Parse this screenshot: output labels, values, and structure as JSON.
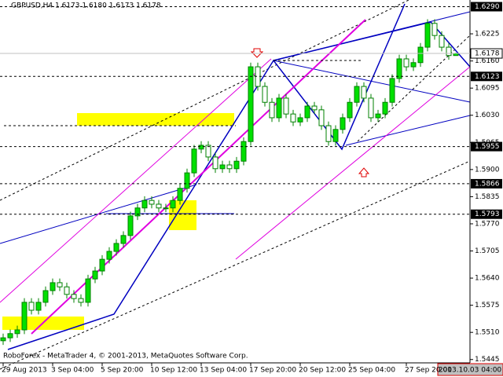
{
  "chart_data": {
    "type": "candlestick",
    "title": "GBPUSD,H4  1.6173 1.6180 1.6173 1.6178",
    "footer": "RoboForex - MetaTrader 4, © 2001-2013, MetaQuotes Software Corp.",
    "cursor_label": "2013.10.03 04:00",
    "up_color": "#00e000",
    "down_color": "#ffffff",
    "edge_color": "#008000",
    "categories": [
      "29 Aug 2013",
      null,
      null,
      null,
      null,
      null,
      null,
      "3 Sep 04:00",
      null,
      null,
      null,
      null,
      null,
      null,
      "5 Sep 20:00",
      null,
      null,
      null,
      null,
      null,
      null,
      "10 Sep 12:00",
      null,
      null,
      null,
      null,
      null,
      null,
      "13 Sep 04:00",
      null,
      null,
      null,
      null,
      null,
      null,
      "17 Sep 20:00",
      null,
      null,
      null,
      null,
      null,
      null,
      "20 Sep 12:00",
      null,
      null,
      null,
      null,
      null,
      null,
      "25 Sep 04:00",
      null,
      null,
      null,
      null,
      null,
      null,
      null,
      "27 Sep 20:00",
      null,
      null,
      null,
      null,
      null,
      null,
      null
    ],
    "open": [
      1.549,
      1.5497,
      1.5507,
      1.5516,
      1.5582,
      1.5563,
      1.5582,
      1.561,
      1.5629,
      1.5619,
      1.5601,
      1.5591,
      1.5582,
      1.5638,
      1.5657,
      1.5685,
      1.5704,
      1.5723,
      1.5742,
      1.5789,
      1.5808,
      1.5826,
      1.5817,
      1.5808,
      1.5808,
      1.5826,
      1.5855,
      1.5892,
      1.5949,
      1.5958,
      1.593,
      1.5902,
      1.5911,
      1.5902,
      1.592,
      1.5967,
      1.6146,
      1.6099,
      1.6061,
      1.6024,
      1.6071,
      1.6033,
      1.6014,
      1.6024,
      1.6052,
      1.6043,
      1.6005,
      1.5967,
      1.5996,
      1.6024,
      1.6061,
      1.6099,
      1.6071,
      1.6024,
      1.6033,
      1.6061,
      1.6118,
      1.6165,
      1.6146,
      1.6156,
      1.6193,
      1.625,
      1.6221,
      1.6193,
      1.6173
    ],
    "high": [
      1.5507,
      1.5517,
      1.5526,
      1.5592,
      1.5592,
      1.5592,
      1.562,
      1.5639,
      1.5639,
      1.5629,
      1.5611,
      1.5601,
      1.5648,
      1.5667,
      1.5695,
      1.5714,
      1.5733,
      1.5752,
      1.5799,
      1.5818,
      1.5836,
      1.5836,
      1.5827,
      1.5818,
      1.5836,
      1.5865,
      1.5902,
      1.5959,
      1.5968,
      1.5968,
      1.594,
      1.5921,
      1.5921,
      1.593,
      1.5977,
      1.6156,
      1.6156,
      1.6109,
      1.6071,
      1.6081,
      1.6081,
      1.6043,
      1.6034,
      1.6062,
      1.6062,
      1.6053,
      1.6015,
      1.6006,
      1.6034,
      1.6071,
      1.6109,
      1.6109,
      1.6081,
      1.6043,
      1.6071,
      1.6128,
      1.6175,
      1.6175,
      1.6166,
      1.6203,
      1.626,
      1.626,
      1.6231,
      1.6203,
      1.618
    ],
    "low": [
      1.548,
      1.5487,
      1.5497,
      1.5506,
      1.5553,
      1.5553,
      1.5572,
      1.56,
      1.5609,
      1.5591,
      1.5581,
      1.5572,
      1.5572,
      1.5628,
      1.5647,
      1.5675,
      1.5694,
      1.5713,
      1.5732,
      1.5779,
      1.5798,
      1.5807,
      1.5798,
      1.5798,
      1.5798,
      1.5816,
      1.5845,
      1.5882,
      1.5939,
      1.592,
      1.5892,
      1.5892,
      1.5892,
      1.5892,
      1.591,
      1.5957,
      1.6089,
      1.6051,
      1.6014,
      1.6014,
      1.6023,
      1.6004,
      1.6004,
      1.6014,
      1.6033,
      1.5995,
      1.5957,
      1.5957,
      1.5986,
      1.6014,
      1.6051,
      1.6061,
      1.6014,
      1.6014,
      1.6023,
      1.6051,
      1.6108,
      1.6136,
      1.6136,
      1.6146,
      1.6183,
      1.6211,
      1.6183,
      1.6163,
      1.6173
    ],
    "close": [
      1.5497,
      1.5507,
      1.5516,
      1.5582,
      1.5563,
      1.5582,
      1.561,
      1.5629,
      1.5619,
      1.5601,
      1.5591,
      1.5582,
      1.5638,
      1.5657,
      1.5685,
      1.5704,
      1.5723,
      1.5742,
      1.5789,
      1.5808,
      1.5826,
      1.5817,
      1.5808,
      1.5808,
      1.5826,
      1.5855,
      1.5892,
      1.5949,
      1.5958,
      1.593,
      1.5902,
      1.5911,
      1.5902,
      1.592,
      1.5967,
      1.6146,
      1.6099,
      1.6061,
      1.6024,
      1.6071,
      1.6033,
      1.6014,
      1.6024,
      1.6052,
      1.6043,
      1.6005,
      1.5967,
      1.5996,
      1.6024,
      1.6061,
      1.6099,
      1.6071,
      1.6024,
      1.6033,
      1.6061,
      1.6118,
      1.6165,
      1.6146,
      1.6156,
      1.6193,
      1.625,
      1.6221,
      1.6193,
      1.6173,
      1.6178
    ],
    "ylim": [
      1.5437,
      1.6306
    ],
    "yticks": [
      1.6225,
      {
        "value": 1.616,
        "label": "1.6160"
      },
      1.6095,
      {
        "value": 1.603,
        "label": "1.6030"
      },
      1.5965,
      {
        "value": 1.59,
        "label": "1.5900"
      },
      1.5835,
      {
        "value": 1.577,
        "label": "1.5770"
      },
      1.5705,
      {
        "value": 1.564,
        "label": "1.5640"
      },
      1.5575,
      {
        "value": 1.551,
        "label": "1.5510"
      },
      1.5445
    ],
    "levels": [
      {
        "value": 1.629,
        "label": "1.6290"
      },
      1.6123,
      1.5955,
      1.5866,
      1.5793
    ],
    "bid": 1.6178
  }
}
